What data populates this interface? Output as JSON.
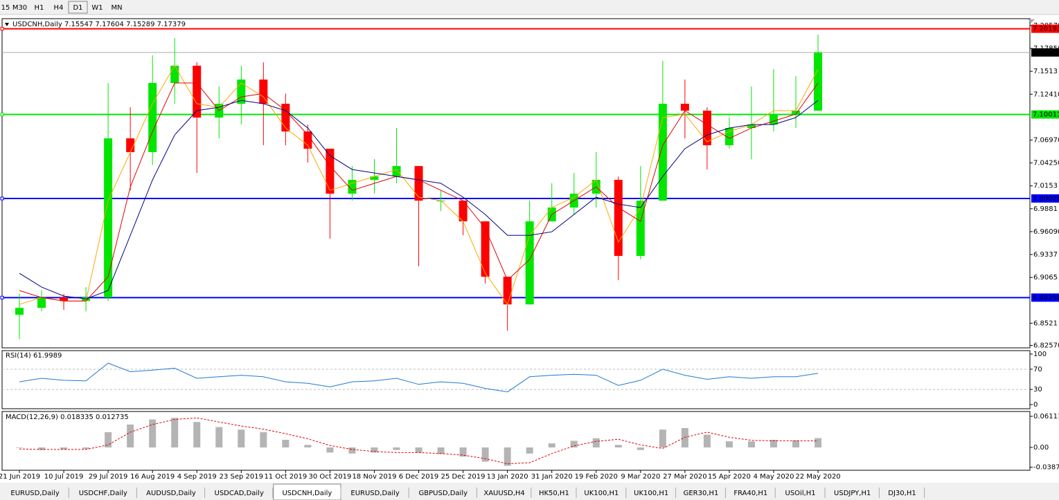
{
  "toolbar": [
    "15",
    "M30",
    "H1",
    "H4",
    "D1",
    "W1",
    "MN"
  ],
  "tabs": [
    "EURUSD,Daily",
    "USDCHF,Daily",
    "AUDUSD,Daily",
    "USDCAD,Daily",
    "USDCNH,Daily",
    "EURUSD,Daily",
    "GBPUSD,Daily",
    "XAUUSD,H4",
    "HK50,H1",
    "UK100,H1",
    "UK100,H1",
    "GER30,H1",
    "FRA40,H1",
    "USOil,H1",
    "USDJPY,H1",
    "DJ30,H1"
  ],
  "active_tab": 4,
  "chart_data": [
    {
      "type": "candlestick",
      "title": "USDCNH,Daily  7.15547 7.17604 7.15289 7.17379",
      "categories": [
        "21 Jun 2019",
        null,
        "10 Jul 2019",
        null,
        "29 Jul 2019",
        null,
        "16 Aug 2019",
        null,
        "4 Sep 2019",
        null,
        "23 Sep 2019",
        null,
        "11 Oct 2019",
        null,
        "30 Oct 2019",
        null,
        "18 Nov 2019",
        null,
        "6 Dec 2019",
        null,
        "25 Dec 2019",
        null,
        "13 Jan 2020",
        null,
        "31 Jan 2020",
        null,
        "19 Feb 2020",
        null,
        "9 Mar 2020",
        null,
        "27 Mar 2020",
        null,
        "15 Apr 2020",
        null,
        "4 May 2020",
        null,
        "22 May 2020"
      ],
      "open": [
        6.8621,
        6.8703,
        6.8827,
        6.8785,
        6.8827,
        7.0717,
        7.0553,
        7.1375,
        7.158,
        7.0964,
        7.1128,
        7.1416,
        7.1128,
        7.0799,
        7.0594,
        7.006,
        7.0224,
        7.0265,
        7.0388,
        6.9977,
        6.9977,
        6.9731,
        6.9073,
        6.8744,
        6.9731,
        6.9895,
        7.006,
        7.0224,
        6.932,
        6.9977,
        7.1128,
        7.1046,
        7.0635,
        7.084,
        7.0882,
        7.1005,
        7.1046
      ],
      "high": [
        6.8868,
        6.8909,
        6.8868,
        6.895,
        7.1375,
        7.1087,
        7.1704,
        7.1909,
        7.1621,
        7.1334,
        7.158,
        7.1621,
        7.125,
        7.0882,
        7.0594,
        7.0388,
        7.0471,
        7.084,
        7.0388,
        7.0101,
        6.9977,
        6.9731,
        6.9073,
        6.9977,
        7.0183,
        7.0306,
        7.0553,
        7.0265,
        7.0388,
        7.1638,
        7.1416,
        7.1087,
        7.0964,
        7.1334,
        7.1539,
        7.1457,
        7.195
      ],
      "low": [
        6.8333,
        6.8662,
        6.8679,
        6.8662,
        6.8785,
        7.0101,
        7.04,
        7.1128,
        7.0306,
        7.0717,
        7.0882,
        7.0635,
        7.0635,
        7.0429,
        6.9525,
        6.9977,
        7.006,
        7.0183,
        6.9196,
        6.9854,
        6.9566,
        6.8991,
        6.8432,
        6.8744,
        6.9731,
        6.9813,
        6.9895,
        6.9032,
        6.9279,
        6.9977,
        7.0717,
        7.0347,
        7.0594,
        7.0471,
        7.0799,
        7.084,
        7.1046
      ],
      "close": [
        6.8703,
        6.8827,
        6.8785,
        6.8827,
        7.0717,
        7.0553,
        7.1375,
        7.158,
        7.0964,
        7.1128,
        7.1416,
        7.1128,
        7.0799,
        7.0594,
        7.006,
        7.0224,
        7.0265,
        7.0388,
        6.9977,
        6.9977,
        6.9731,
        6.9073,
        6.8744,
        6.9731,
        6.9895,
        7.006,
        7.0224,
        6.932,
        6.9977,
        7.1128,
        7.1046,
        7.0635,
        7.084,
        7.0882,
        7.1005,
        7.1046,
        7.17379
      ],
      "up_color": "#00e600",
      "down_color": "#ff0000",
      "lines": [
        {
          "color": "#ffa500",
          "values": [
            6.8744,
            6.8826,
            6.8785,
            6.8785,
            6.9977,
            7.0553,
            7.1128,
            7.158,
            7.1128,
            7.1087,
            7.1375,
            7.121,
            7.084,
            7.0635,
            7.01,
            7.0183,
            7.0265,
            7.0347,
            7.0018,
            6.9977,
            6.9731,
            6.9114,
            6.8744,
            6.9566,
            6.9895,
            7.0018,
            7.0224,
            6.9484,
            6.9895,
            7.0964,
            7.1005,
            7.0676,
            7.0799,
            7.0881,
            7.1046,
            7.1046,
            7.1539
          ]
        },
        {
          "color": "#e00000",
          "values": [
            6.8909,
            6.8826,
            6.8785,
            6.8785,
            6.9073,
            7.0142,
            7.0799,
            7.1375,
            7.1375,
            7.1046,
            7.121,
            7.1251,
            7.1046,
            7.0758,
            7.0388,
            7.01,
            7.0183,
            7.0265,
            7.0224,
            7.01,
            6.9977,
            6.9648,
            6.9032,
            6.9278,
            6.9813,
            6.9977,
            7.0142,
            6.9895,
            6.9731,
            7.0635,
            7.1046,
            7.0881,
            7.0717,
            7.084,
            7.0922,
            7.1005,
            7.1375
          ]
        },
        {
          "color": "#000080",
          "values": [
            6.9114,
            6.895,
            6.8843,
            6.881,
            6.8909,
            6.9566,
            7.0224,
            7.0758,
            7.1046,
            7.1087,
            7.1169,
            7.1128,
            7.1046,
            7.084,
            7.0511,
            7.0347,
            7.0306,
            7.0265,
            7.0224,
            7.0183,
            7.0018,
            6.9813,
            6.9566,
            6.9566,
            6.9607,
            6.9813,
            7.0018,
            6.9936,
            6.9895,
            7.0265,
            7.0594,
            7.0758,
            7.084,
            7.0881,
            7.0881,
            7.0964,
            7.1169
          ]
        }
      ],
      "levels": [
        {
          "value": 7.20193,
          "label": "7.20193",
          "color": "#ff0000"
        },
        {
          "value": 7.10011,
          "label": "7.10011",
          "color": "#00e600"
        },
        {
          "value": 7.00029,
          "label": "7.00029",
          "color": "#0000ff"
        },
        {
          "value": 6.8825,
          "label": "6.88250",
          "color": "#0000ff"
        }
      ],
      "current": {
        "value": 7.17379,
        "label": "7.17379"
      },
      "ylim": [
        6.8228,
        7.2139
      ],
      "yticks": [
        {
          "value": 7.2057,
          "label": "7.20570"
        },
        {
          "value": 7.1785,
          "label": "7.17850"
        },
        7.1513,
        {
          "value": 7.1241,
          "label": "7.12410"
        },
        {
          "value": 7.0697,
          "label": "7.06970"
        },
        {
          "value": 7.0425,
          "label": "7.04250"
        },
        7.0153,
        6.9881,
        {
          "value": 6.9609,
          "label": "6.96090"
        },
        6.9337,
        6.9065,
        6.8521,
        {
          "value": 6.8257,
          "label": "6.82570"
        }
      ]
    },
    {
      "type": "line",
      "title": "RSI(14) 61.9989",
      "color": "#1e78d2",
      "values": [
        45,
        52,
        48,
        47,
        82,
        65,
        68,
        72,
        52,
        55,
        58,
        55,
        45,
        42,
        35,
        45,
        47,
        52,
        40,
        45,
        42,
        32,
        25,
        55,
        58,
        60,
        58,
        38,
        48,
        70,
        58,
        50,
        55,
        52,
        55,
        55,
        61.9989
      ],
      "levels": [
        70,
        30
      ],
      "ylim": [
        -8.2,
        106.8
      ],
      "yticks": [
        100,
        70,
        30,
        0
      ]
    },
    {
      "type": "macd",
      "title": "MACD(12,26,9) 0.018335 0.012735",
      "histogram_color": "#b4b4b4",
      "signal_color": "#e00000",
      "histogram": [
        -0.001,
        -0.005,
        -0.004,
        -0.003,
        0.03,
        0.045,
        0.055,
        0.058,
        0.05,
        0.04,
        0.035,
        0.03,
        0.015,
        0.005,
        -0.01,
        -0.012,
        -0.01,
        -0.005,
        -0.01,
        -0.013,
        -0.018,
        -0.028,
        -0.036,
        -0.012,
        0.008,
        0.013,
        0.018,
        0.005,
        -0.005,
        0.035,
        0.038,
        0.025,
        0.012,
        0.012,
        0.015,
        0.014,
        0.018335
      ],
      "signal": [
        -0.003,
        -0.004,
        -0.004,
        -0.004,
        0.005,
        0.03,
        0.045,
        0.055,
        0.058,
        0.05,
        0.042,
        0.036,
        0.027,
        0.017,
        0.004,
        -0.004,
        -0.008,
        -0.01,
        -0.01,
        -0.012,
        -0.015,
        -0.022,
        -0.032,
        -0.03,
        -0.012,
        0.003,
        0.012,
        0.016,
        0.005,
        -0.002,
        0.02,
        0.03,
        0.02,
        0.014,
        0.013,
        0.013,
        0.012735
      ],
      "ylim": [
        -0.0448,
        0.0706
      ],
      "yticks": [
        0.061115,
        {
          "value": 0,
          "label": "0.00"
        },
        {
          "value": -0.03877,
          "label": "-0.038770"
        }
      ]
    }
  ]
}
